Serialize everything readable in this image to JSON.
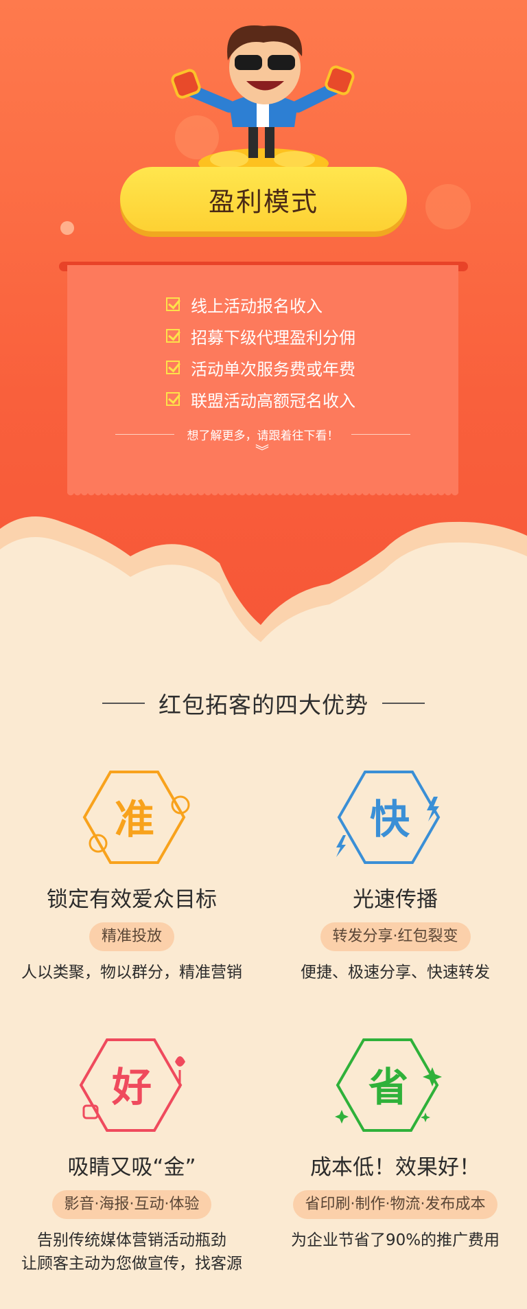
{
  "hero": {
    "title": "盈利模式",
    "items": [
      {
        "label": "线上活动报名收入"
      },
      {
        "label": "招募下级代理盈利分佣"
      },
      {
        "label": "活动单次服务费或年费"
      },
      {
        "label": "联盟活动高额冠名收入"
      }
    ],
    "more_text": "想了解更多，请跟着往下看！"
  },
  "section": {
    "title": "红包拓客的四大优势"
  },
  "advantages": [
    {
      "char": "准",
      "title": "锁定有效爱众目标",
      "tag": "精准投放",
      "desc": [
        "人以类聚，物以群分，精准营销"
      ],
      "color": "#f8a21c"
    },
    {
      "char": "快",
      "title": "光速传播",
      "tag": "转发分享·红包裂变",
      "desc": [
        "便捷、极速分享、快速转发"
      ],
      "color": "#3a8fd6"
    },
    {
      "char": "好",
      "title": "吸睛又吸“金”",
      "tag": "影音·海报·互动·体验",
      "desc": [
        "告别传统媒体营销活动瓶劲",
        "让顾客主动为您做宣传，找客源"
      ],
      "color": "#ef4a5d"
    },
    {
      "char": "省",
      "title": "成本低！效果好！",
      "tag": "省印刷·制作·物流·发布成本",
      "desc": [
        "为企业节省了90%的推广费用"
      ],
      "color": "#2fb13a"
    }
  ],
  "colors": {
    "hero_top": "#fe7a4d",
    "hero_bottom": "#f65637",
    "cream": "#fbead2",
    "pill": "#fdd133"
  }
}
